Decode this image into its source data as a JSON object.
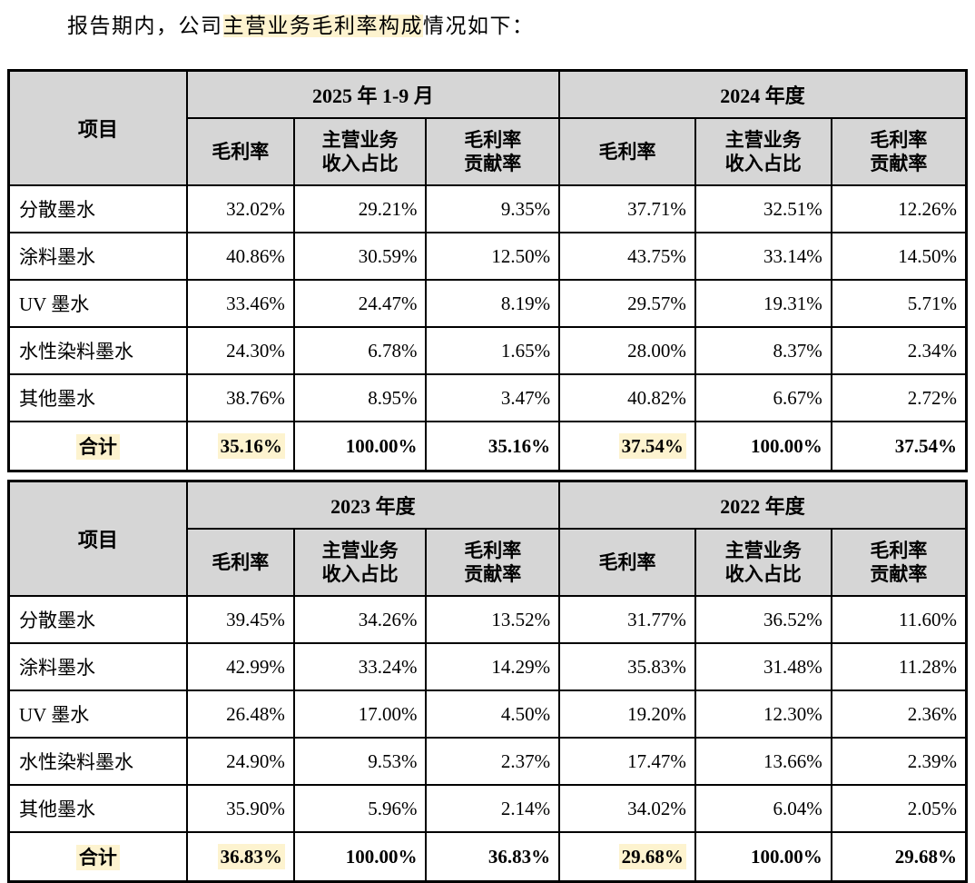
{
  "intro": {
    "prefix": "报告期内，公司",
    "highlight": "主营业务毛利率构成",
    "suffix": "情况如下："
  },
  "columns": {
    "item": "项目",
    "rate": "毛利率",
    "share_l1": "主营业务",
    "share_l2": "收入占比",
    "contrib_l1": "毛利率",
    "contrib_l2": "贡献率"
  },
  "colors": {
    "header_bg": "#d6d6d6",
    "highlight_bg": "#fdf3cf"
  },
  "tables": [
    {
      "periods": [
        "2025 年 1-9 月",
        "2024 年度"
      ],
      "rows": [
        {
          "item": "分散墨水",
          "values": [
            "32.02%",
            "29.21%",
            "9.35%",
            "37.71%",
            "32.51%",
            "12.26%"
          ]
        },
        {
          "item": "涂料墨水",
          "values": [
            "40.86%",
            "30.59%",
            "12.50%",
            "43.75%",
            "33.14%",
            "14.50%"
          ]
        },
        {
          "item": "UV 墨水",
          "values": [
            "33.46%",
            "24.47%",
            "8.19%",
            "29.57%",
            "19.31%",
            "5.71%"
          ]
        },
        {
          "item": "水性染料墨水",
          "values": [
            "24.30%",
            "6.78%",
            "1.65%",
            "28.00%",
            "8.37%",
            "2.34%"
          ]
        },
        {
          "item": "其他墨水",
          "values": [
            "38.76%",
            "8.95%",
            "3.47%",
            "40.82%",
            "6.67%",
            "2.72%"
          ]
        }
      ],
      "total": {
        "item": "合计",
        "values": [
          "35.16%",
          "100.00%",
          "35.16%",
          "37.54%",
          "100.00%",
          "37.54%"
        ]
      }
    },
    {
      "periods": [
        "2023 年度",
        "2022 年度"
      ],
      "rows": [
        {
          "item": "分散墨水",
          "values": [
            "39.45%",
            "34.26%",
            "13.52%",
            "31.77%",
            "36.52%",
            "11.60%"
          ]
        },
        {
          "item": "涂料墨水",
          "values": [
            "42.99%",
            "33.24%",
            "14.29%",
            "35.83%",
            "31.48%",
            "11.28%"
          ]
        },
        {
          "item": "UV 墨水",
          "values": [
            "26.48%",
            "17.00%",
            "4.50%",
            "19.20%",
            "12.30%",
            "2.36%"
          ]
        },
        {
          "item": "水性染料墨水",
          "values": [
            "24.90%",
            "9.53%",
            "2.37%",
            "17.47%",
            "13.66%",
            "2.39%"
          ]
        },
        {
          "item": "其他墨水",
          "values": [
            "35.90%",
            "5.96%",
            "2.14%",
            "34.02%",
            "6.04%",
            "2.05%"
          ]
        }
      ],
      "total": {
        "item": "合计",
        "values": [
          "36.83%",
          "100.00%",
          "36.83%",
          "29.68%",
          "100.00%",
          "29.68%"
        ]
      }
    }
  ]
}
